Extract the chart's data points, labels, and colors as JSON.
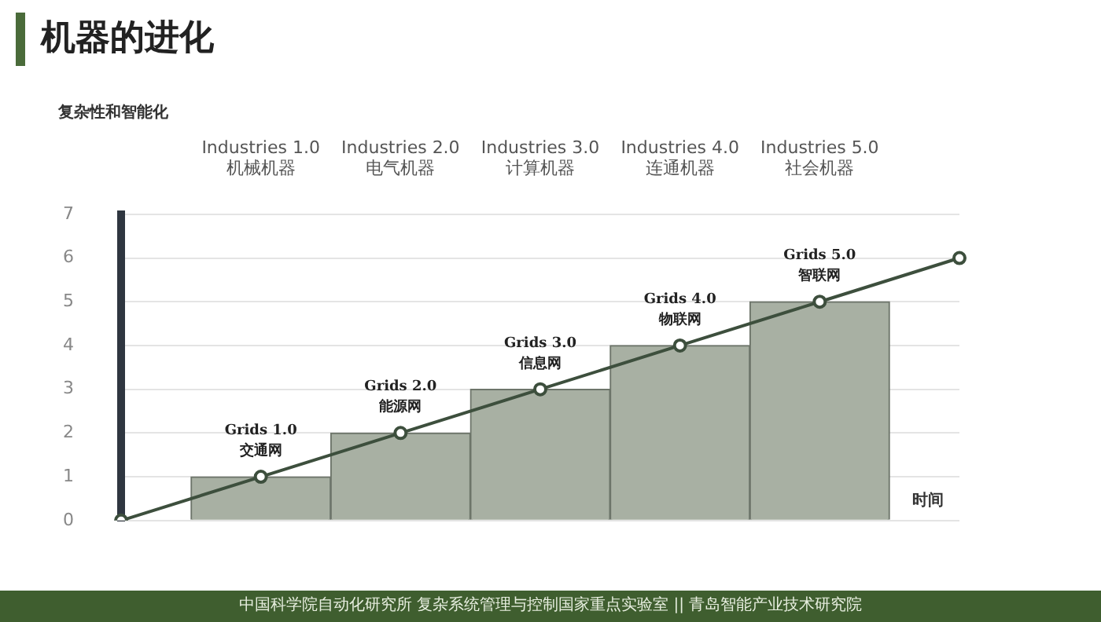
{
  "chart_data": {
    "type": "bar",
    "title": "机器的进化",
    "ylabel": "复杂性和智能化",
    "xlabel": "时间",
    "categories": [
      null,
      "Industries 1.0\n机械机器",
      "Industries 2.0\n电气机器",
      "Industries 3.0\n计算机器",
      "Industries 4.0\n连通机器",
      "Industries 5.0\n社会机器",
      null
    ],
    "series": [
      {
        "color": "#a8b0a3",
        "values": [
          null,
          1,
          2,
          3,
          4,
          5,
          null
        ]
      },
      {
        "type": "line",
        "color": "#3d4f3d",
        "values": [
          0,
          1,
          2,
          3,
          4,
          5,
          6
        ]
      }
    ],
    "ylim": [
      0,
      7
    ],
    "yticks": [
      0,
      1,
      2,
      3,
      4,
      5,
      6,
      7
    ],
    "grid": "y",
    "marker": "circle",
    "line_style": "solid",
    "annotations": [
      {
        "text": "Grids 1.0\n交通网",
        "x": "Industries 1.0\n机械机器",
        "y": 1
      },
      {
        "text": "Grids 2.0\n能源网",
        "x": "Industries 2.0\n电气机器",
        "y": 2
      },
      {
        "text": "Grids 3.0\n信息网",
        "x": "Industries 3.0\n计算机器",
        "y": 3
      },
      {
        "text": "Grids 4.0\n物联网",
        "x": "Industries 4.0\n连通机器",
        "y": 4
      },
      {
        "text": "Grids 5.0\n智联网",
        "x": "Industries 5.0\n社会机器",
        "y": 5
      },
      "中国科学院自动化研究所 复杂系统管理与控制国家重点实验室 || 青岛智能产业技术研究院"
    ]
  }
}
